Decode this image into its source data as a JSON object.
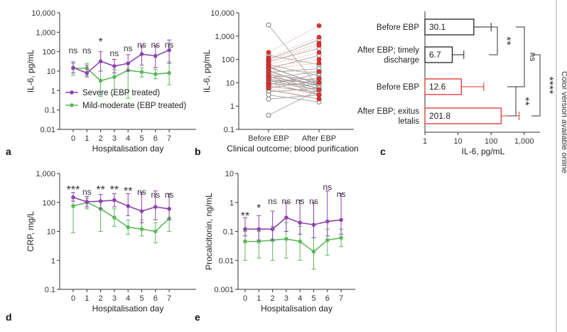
{
  "side_note": "Color version available online",
  "legend": {
    "severe": "Severe (EBP treated)",
    "mild": "Mild-moderate (EBP treated)"
  },
  "colors": {
    "severe": "#8e44ad",
    "mild": "#5cb85c",
    "gray": "#888888",
    "red": "#e03131",
    "red_line": "#f2a0a0"
  },
  "chart_data": [
    {
      "panel": "a",
      "type": "line",
      "ylabel": "IL-6, pg/mL",
      "xlabel": "Hospitalisation day",
      "x": [
        0,
        1,
        2,
        3,
        4,
        5,
        6,
        7
      ],
      "yscale": "log",
      "ylim": [
        0.01,
        10000
      ],
      "ytick_labels": [
        "0.01",
        "0.1",
        "1",
        "10",
        "100",
        "1,000",
        "10,000"
      ],
      "xtick_labels": [
        "0",
        "1",
        "2",
        "3",
        "4",
        "5",
        "6",
        "7"
      ],
      "series": [
        {
          "name": "Severe (EBP treated)",
          "values": [
            15,
            8,
            32,
            18,
            25,
            75,
            60,
            120
          ],
          "err_low": [
            8,
            5,
            10,
            8,
            10,
            20,
            15,
            25
          ],
          "err_high": [
            30,
            20,
            100,
            40,
            70,
            200,
            200,
            400
          ]
        },
        {
          "name": "Mild-moderate (EBP treated)",
          "values": [
            14,
            14,
            3.2,
            5,
            11,
            9,
            7,
            8
          ],
          "err_low": [
            6,
            6,
            0.5,
            0.6,
            0.4,
            5,
            4,
            2
          ],
          "err_high": [
            25,
            25,
            10,
            12,
            25,
            15,
            12,
            30
          ]
        }
      ],
      "annotations": [
        "ns",
        "ns",
        "*",
        "ns",
        "ns",
        "ns",
        "ns",
        "ns"
      ]
    },
    {
      "panel": "b",
      "type": "scatter",
      "ylabel": "IL-6, pg/mL",
      "xlabel": "Clinical outcome; blood purification",
      "yscale": "log",
      "ylim": [
        0.1,
        10000
      ],
      "ytick_labels": [
        "0.1",
        "1",
        "10",
        "100",
        "1,000",
        "10,000"
      ],
      "categories": [
        "Before EBP",
        "After EBP"
      ],
      "pairs_gray": [
        [
          3000,
          6
        ],
        [
          150,
          60
        ],
        [
          100,
          700
        ],
        [
          80,
          300
        ],
        [
          60,
          20
        ],
        [
          50,
          8
        ],
        [
          45,
          9
        ],
        [
          40,
          150
        ],
        [
          35,
          5
        ],
        [
          30,
          7
        ],
        [
          28,
          40
        ],
        [
          25,
          4
        ],
        [
          22,
          12
        ],
        [
          20,
          3
        ],
        [
          18,
          8
        ],
        [
          16,
          30
        ],
        [
          14,
          6
        ],
        [
          13,
          10
        ],
        [
          12,
          5
        ],
        [
          11,
          15
        ],
        [
          10,
          3
        ],
        [
          9,
          8
        ],
        [
          8,
          25
        ],
        [
          7,
          4
        ],
        [
          6,
          12
        ],
        [
          5,
          2
        ],
        [
          4,
          6
        ],
        [
          3,
          1.5
        ],
        [
          2,
          3
        ],
        [
          0.4,
          5
        ]
      ],
      "pairs_red": [
        [
          200,
          2800
        ],
        [
          120,
          900
        ],
        [
          90,
          500
        ],
        [
          75,
          400
        ],
        [
          60,
          200
        ],
        [
          50,
          100
        ],
        [
          40,
          70
        ],
        [
          30,
          30
        ],
        [
          20,
          15
        ],
        [
          15,
          10
        ],
        [
          10,
          5
        ],
        [
          8,
          3
        ],
        [
          6,
          2
        ]
      ]
    },
    {
      "panel": "c",
      "type": "bar",
      "xlabel": "IL-6, pg/mL",
      "xscale": "log",
      "xlim": [
        1,
        3000
      ],
      "xtick_labels": [
        "1",
        "10",
        "100",
        "1,000"
      ],
      "categories": [
        "Before EBP",
        "After EBP; timely discharge",
        "Before EBP",
        "After EBP; exitus letalis"
      ],
      "category_lines": [
        [
          "Before EBP"
        ],
        [
          "After EBP; timely",
          "discharge"
        ],
        [
          "Before EBP"
        ],
        [
          "After EBP; exitus",
          "letalis"
        ]
      ],
      "values": [
        30.1,
        6.7,
        12.6,
        201.8
      ],
      "labels": [
        "30.1",
        "6.7",
        "12.6",
        "201.8"
      ],
      "err_high": [
        100,
        15,
        60,
        700
      ],
      "bar_colors": [
        "#222222",
        "#222222",
        "#e03131",
        "#e03131"
      ],
      "brackets": [
        "**",
        "ns",
        "****",
        "**"
      ]
    },
    {
      "panel": "d",
      "type": "line",
      "ylabel": "CRP, mg/L",
      "xlabel": "Hospitalisation day",
      "x": [
        0,
        1,
        2,
        3,
        4,
        5,
        6,
        7
      ],
      "yscale": "log",
      "ylim": [
        0.1,
        1000
      ],
      "ytick_labels": [
        "0.1",
        "1",
        "10",
        "100",
        "1,000"
      ],
      "xtick_labels": [
        "0",
        "1",
        "2",
        "3",
        "4",
        "5",
        "6",
        "7"
      ],
      "series": [
        {
          "name": "Severe (EBP treated)",
          "values": [
            150,
            105,
            110,
            120,
            75,
            50,
            70,
            60
          ],
          "err_low": [
            110,
            70,
            60,
            70,
            35,
            20,
            25,
            25
          ],
          "err_high": [
            220,
            160,
            190,
            200,
            200,
            220,
            250,
            200
          ]
        },
        {
          "name": "Mild-moderate (EBP treated)",
          "values": [
            75,
            100,
            60,
            30,
            14,
            12,
            10,
            28
          ],
          "err_low": [
            9,
            60,
            10,
            15,
            8,
            7,
            4,
            10
          ],
          "err_high": [
            140,
            140,
            120,
            60,
            25,
            25,
            20,
            60
          ]
        }
      ],
      "annotations": [
        "***",
        "ns",
        "**",
        "**",
        "**",
        "ns",
        "ns",
        "ns"
      ]
    },
    {
      "panel": "e",
      "type": "line",
      "ylabel": "Procalcitonin, ng/mL",
      "xlabel": "Hospitalisation day",
      "x": [
        0,
        1,
        2,
        3,
        4,
        5,
        6,
        7
      ],
      "yscale": "log",
      "ylim": [
        0.001,
        10
      ],
      "ytick_labels": [
        "0.001",
        "0.01",
        "0.1",
        "1",
        "10"
      ],
      "xtick_labels": [
        "0",
        "1",
        "2",
        "3",
        "4",
        "5",
        "6",
        "7"
      ],
      "series": [
        {
          "name": "Severe (EBP treated)",
          "values": [
            0.12,
            0.12,
            0.12,
            0.3,
            0.2,
            0.17,
            0.22,
            0.25
          ],
          "err_low": [
            0.07,
            0.05,
            0.05,
            0.1,
            0.08,
            0.06,
            0.07,
            0.08
          ],
          "err_high": [
            0.3,
            0.35,
            0.5,
            1,
            1.2,
            1,
            2.5,
            2
          ]
        },
        {
          "name": "Mild-moderate (EBP treated)",
          "values": [
            0.045,
            0.045,
            0.05,
            0.055,
            0.045,
            0.02,
            0.05,
            0.06
          ],
          "err_low": [
            0.01,
            0.012,
            0.01,
            0.012,
            0.01,
            0.005,
            0.015,
            0.03
          ],
          "err_high": [
            0.1,
            0.1,
            0.15,
            0.2,
            0.15,
            0.06,
            0.12,
            0.12
          ]
        }
      ],
      "annotations": [
        "**",
        "*",
        "ns",
        "ns",
        "ns",
        "ns",
        "ns",
        "ns"
      ]
    }
  ]
}
